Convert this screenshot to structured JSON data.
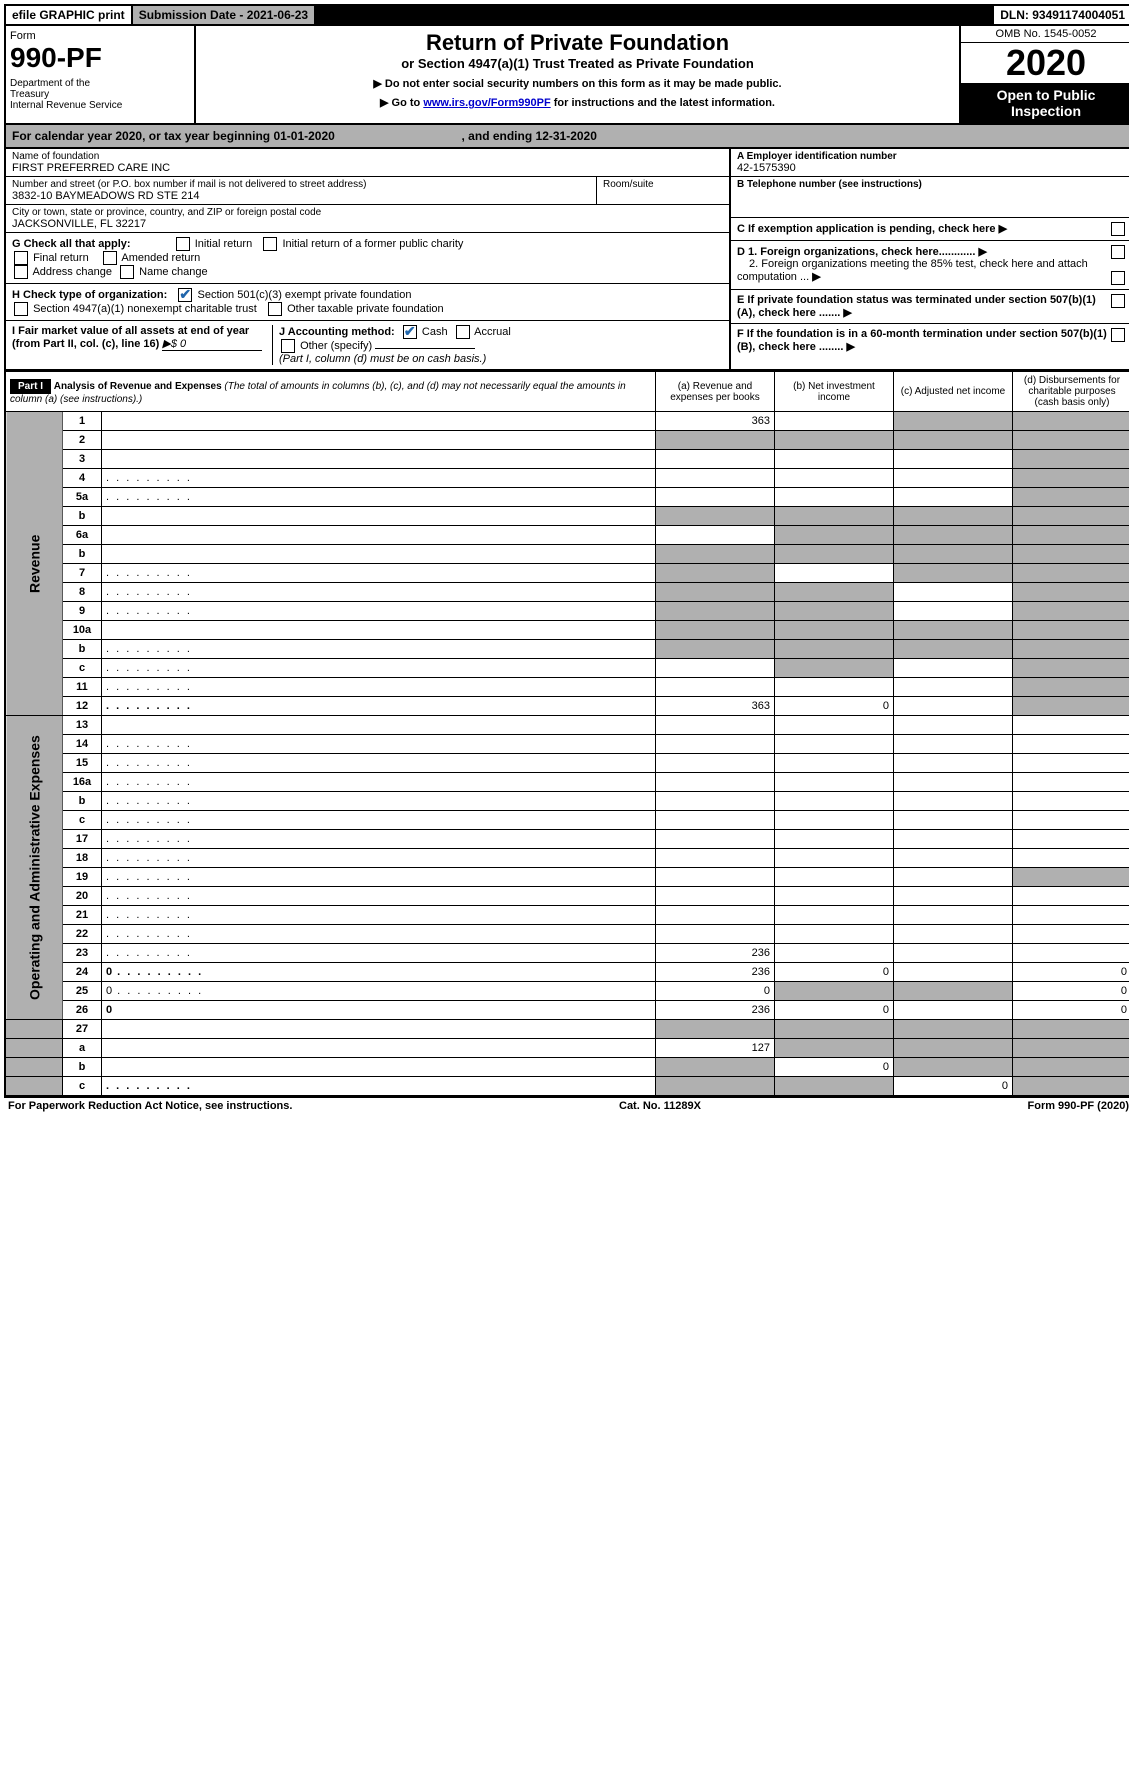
{
  "top": {
    "efile": "efile GRAPHIC print",
    "subdate": "Submission Date - 2021-06-23",
    "dln": "DLN: 93491174004051"
  },
  "header": {
    "form_label": "Form",
    "form_number": "990-PF",
    "dept": "Department of the Treasury\nInternal Revenue Service",
    "title": "Return of Private Foundation",
    "subtitle": "or Section 4947(a)(1) Trust Treated as Private Foundation",
    "instr1": "▶ Do not enter social security numbers on this form as it may be made public.",
    "instr2_pre": "▶ Go to ",
    "instr2_link": "www.irs.gov/Form990PF",
    "instr2_post": " for instructions and the latest information.",
    "omb": "OMB No. 1545-0052",
    "year": "2020",
    "open": "Open to Public Inspection"
  },
  "calyear": {
    "text_a": "For calendar year 2020, or tax year beginning 01-01-2020",
    "text_b": ", and ending 12-31-2020"
  },
  "entity": {
    "name_label": "Name of foundation",
    "name": "FIRST PREFERRED CARE INC",
    "addr_label": "Number and street (or P.O. box number if mail is not delivered to street address)",
    "addr": "3832-10 BAYMEADOWS RD STE 214",
    "room_label": "Room/suite",
    "city_label": "City or town, state or province, country, and ZIP or foreign postal code",
    "city": "JACKSONVILLE, FL  32217",
    "ein_label": "A Employer identification number",
    "ein": "42-1575390",
    "phone_label": "B Telephone number (see instructions)",
    "c_label": "C If exemption application is pending, check here"
  },
  "checks": {
    "G_label": "G Check all that apply:",
    "G_opts": [
      "Initial return",
      "Initial return of a former public charity",
      "Final return",
      "Amended return",
      "Address change",
      "Name change"
    ],
    "H_label": "H Check type of organization:",
    "H1": "Section 501(c)(3) exempt private foundation",
    "H2": "Section 4947(a)(1) nonexempt charitable trust",
    "H3": "Other taxable private foundation",
    "I_label": "I Fair market value of all assets at end of year (from Part II, col. (c), line 16)",
    "I_val": "▶$  0",
    "J_label": "J Accounting method:",
    "J1": "Cash",
    "J2": "Accrual",
    "J3": "Other (specify)",
    "J_note": "(Part I, column (d) must be on cash basis.)",
    "D1": "D 1. Foreign organizations, check here............",
    "D2": "2. Foreign organizations meeting the 85% test, check here and attach computation ...",
    "E": "E  If private foundation status was terminated under section 507(b)(1)(A), check here .......",
    "F": "F  If the foundation is in a 60-month termination under section 507(b)(1)(B), check here ........"
  },
  "part1": {
    "label": "Part I",
    "title": "Analysis of Revenue and Expenses",
    "title_note": "(The total of amounts in columns (b), (c), and (d) may not necessarily equal the amounts in column (a) (see instructions).)",
    "col_a": "(a)   Revenue and expenses per books",
    "col_b": "(b)  Net investment income",
    "col_c": "(c)  Adjusted net income",
    "col_d": "(d)  Disbursements for charitable purposes (cash basis only)"
  },
  "rows": [
    {
      "n": "1",
      "d": "",
      "a": "363",
      "b": "",
      "c": "",
      "sh": [
        "c",
        "d"
      ]
    },
    {
      "n": "2",
      "d": "",
      "a": "",
      "b": "",
      "c": "",
      "sh": [
        "a",
        "b",
        "c",
        "d"
      ]
    },
    {
      "n": "3",
      "d": "",
      "a": "",
      "b": "",
      "c": "",
      "sh": [
        "d"
      ]
    },
    {
      "n": "4",
      "d": "",
      "a": "",
      "b": "",
      "c": "",
      "sh": [
        "d"
      ],
      "dots": true
    },
    {
      "n": "5a",
      "d": "",
      "a": "",
      "b": "",
      "c": "",
      "sh": [
        "d"
      ],
      "dots": true
    },
    {
      "n": "b",
      "d": "",
      "a": "",
      "b": "",
      "c": "",
      "sh": [
        "a",
        "b",
        "c",
        "d"
      ]
    },
    {
      "n": "6a",
      "d": "",
      "a": "",
      "b": "",
      "c": "",
      "sh": [
        "b",
        "c",
        "d"
      ]
    },
    {
      "n": "b",
      "d": "",
      "a": "",
      "b": "",
      "c": "",
      "sh": [
        "a",
        "b",
        "c",
        "d"
      ]
    },
    {
      "n": "7",
      "d": "",
      "a": "",
      "b": "",
      "c": "",
      "sh": [
        "a",
        "c",
        "d"
      ],
      "dots": true
    },
    {
      "n": "8",
      "d": "",
      "a": "",
      "b": "",
      "c": "",
      "sh": [
        "a",
        "b",
        "d"
      ],
      "dots": true
    },
    {
      "n": "9",
      "d": "",
      "a": "",
      "b": "",
      "c": "",
      "sh": [
        "a",
        "b",
        "d"
      ],
      "dots": true
    },
    {
      "n": "10a",
      "d": "",
      "a": "",
      "b": "",
      "c": "",
      "sh": [
        "a",
        "b",
        "c",
        "d"
      ]
    },
    {
      "n": "b",
      "d": "",
      "a": "",
      "b": "",
      "c": "",
      "sh": [
        "a",
        "b",
        "c",
        "d"
      ],
      "dots": true
    },
    {
      "n": "c",
      "d": "",
      "a": "",
      "b": "",
      "c": "",
      "sh": [
        "b",
        "d"
      ],
      "dots": true
    },
    {
      "n": "11",
      "d": "",
      "a": "",
      "b": "",
      "c": "",
      "sh": [
        "d"
      ],
      "dots": true
    },
    {
      "n": "12",
      "d": "",
      "a": "363",
      "b": "0",
      "c": "",
      "sh": [
        "d"
      ],
      "bold": true,
      "dots": true
    }
  ],
  "exp_rows": [
    {
      "n": "13",
      "d": "",
      "a": "",
      "b": "",
      "c": ""
    },
    {
      "n": "14",
      "d": "",
      "a": "",
      "b": "",
      "c": "",
      "dots": true
    },
    {
      "n": "15",
      "d": "",
      "a": "",
      "b": "",
      "c": "",
      "dots": true
    },
    {
      "n": "16a",
      "d": "",
      "a": "",
      "b": "",
      "c": "",
      "dots": true
    },
    {
      "n": "b",
      "d": "",
      "a": "",
      "b": "",
      "c": "",
      "dots": true
    },
    {
      "n": "c",
      "d": "",
      "a": "",
      "b": "",
      "c": "",
      "dots": true
    },
    {
      "n": "17",
      "d": "",
      "a": "",
      "b": "",
      "c": "",
      "dots": true
    },
    {
      "n": "18",
      "d": "",
      "a": "",
      "b": "",
      "c": "",
      "dots": true
    },
    {
      "n": "19",
      "d": "",
      "a": "",
      "b": "",
      "c": "",
      "sh": [
        "d"
      ],
      "dots": true
    },
    {
      "n": "20",
      "d": "",
      "a": "",
      "b": "",
      "c": "",
      "dots": true
    },
    {
      "n": "21",
      "d": "",
      "a": "",
      "b": "",
      "c": "",
      "dots": true
    },
    {
      "n": "22",
      "d": "",
      "a": "",
      "b": "",
      "c": "",
      "dots": true
    },
    {
      "n": "23",
      "d": "",
      "a": "236",
      "b": "",
      "c": "",
      "dots": true
    },
    {
      "n": "24",
      "d": "0",
      "a": "236",
      "b": "0",
      "c": "",
      "bold": true,
      "dots": true
    },
    {
      "n": "25",
      "d": "0",
      "a": "0",
      "b": "",
      "c": "",
      "sh": [
        "b",
        "c"
      ],
      "dots": true
    },
    {
      "n": "26",
      "d": "0",
      "a": "236",
      "b": "0",
      "c": "",
      "bold": true
    }
  ],
  "sum_rows": [
    {
      "n": "27",
      "d": "",
      "a": "",
      "b": "",
      "c": "",
      "sh": [
        "a",
        "b",
        "c",
        "d"
      ]
    },
    {
      "n": "a",
      "d": "",
      "a": "127",
      "b": "",
      "c": "",
      "sh": [
        "b",
        "c",
        "d"
      ],
      "bold": true
    },
    {
      "n": "b",
      "d": "",
      "a": "",
      "b": "0",
      "c": "",
      "sh": [
        "a",
        "c",
        "d"
      ],
      "bold": true
    },
    {
      "n": "c",
      "d": "",
      "a": "",
      "b": "",
      "c": "0",
      "sh": [
        "a",
        "b",
        "d"
      ],
      "bold": true,
      "dots": true
    }
  ],
  "side": {
    "revenue": "Revenue",
    "expenses": "Operating and Administrative Expenses"
  },
  "footer": {
    "left": "For Paperwork Reduction Act Notice, see instructions.",
    "mid": "Cat. No. 11289X",
    "right": "Form 990-PF (2020)"
  }
}
